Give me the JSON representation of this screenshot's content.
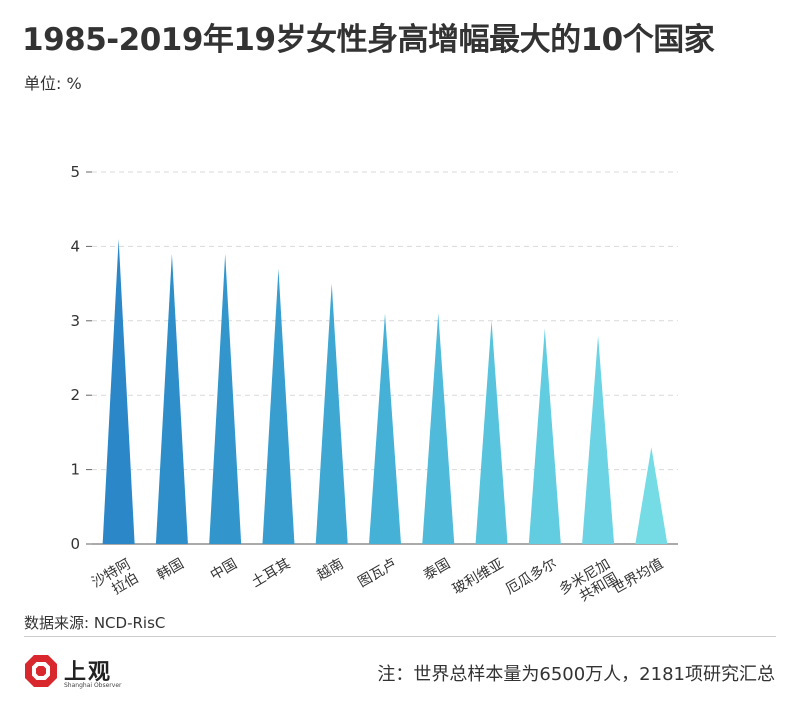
{
  "header": {
    "title": "1985-2019年19岁女性身高增幅最大的10个国家",
    "unit": "单位: %"
  },
  "footer": {
    "source": "数据来源: NCD-RisC",
    "logo_text": "上观",
    "logo_subtext": "Shanghai Observer",
    "note": "注：世界总样本量为6500万人，2181项研究汇总"
  },
  "chart_data": {
    "type": "bar",
    "bar_shape": "triangle",
    "categories": [
      "沙特阿拉伯",
      "韩国",
      "中国",
      "土耳其",
      "越南",
      "图瓦卢",
      "泰国",
      "玻利维亚",
      "厄瓜多尔",
      "多米尼加共和国",
      "世界均值"
    ],
    "values": [
      4.1,
      3.9,
      3.9,
      3.7,
      3.5,
      3.1,
      3.1,
      3.0,
      2.9,
      2.8,
      1.3
    ],
    "colors": [
      "#2b87c8",
      "#2e8ec9",
      "#3296cc",
      "#379ecf",
      "#3ea7d2",
      "#46b1d6",
      "#4fbad9",
      "#58c3dd",
      "#62cce0",
      "#6bd3e3",
      "#75dbe5"
    ],
    "ylim": [
      0,
      5
    ],
    "yticks": [
      "0",
      "1",
      "2",
      "3",
      "4",
      "5"
    ],
    "grid": true,
    "title": "1985-2019年19岁女性身高增幅最大的10个国家",
    "xlabel": "",
    "ylabel": "单位: %"
  }
}
